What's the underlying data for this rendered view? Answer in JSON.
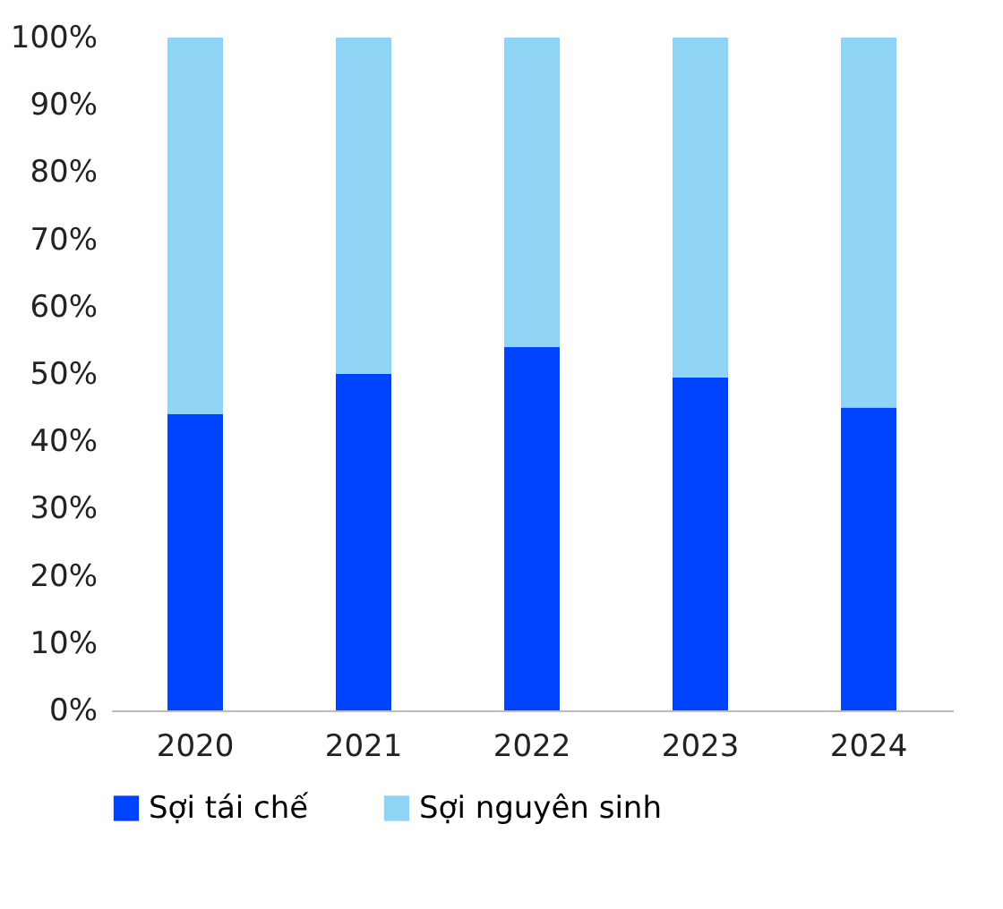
{
  "chart_data": {
    "type": "bar",
    "stacked": true,
    "categories": [
      "2020",
      "2021",
      "2022",
      "2023",
      "2024"
    ],
    "series": [
      {
        "name": "Sợi tái chế",
        "color": "#0044ff",
        "values": [
          44,
          50,
          54,
          49.5,
          45
        ]
      },
      {
        "name": "Sợi nguyên sinh",
        "color": "#8fd4f5",
        "values": [
          56,
          50,
          46,
          50.5,
          55
        ]
      }
    ],
    "ylim": [
      0,
      100
    ],
    "yticks": [
      {
        "value": 0,
        "label": "0%"
      },
      {
        "value": 10,
        "label": "10%"
      },
      {
        "value": 20,
        "label": "20%"
      },
      {
        "value": 30,
        "label": "30%"
      },
      {
        "value": 40,
        "label": "40%"
      },
      {
        "value": 50,
        "label": "50%"
      },
      {
        "value": 60,
        "label": "60%"
      },
      {
        "value": 70,
        "label": "70%"
      },
      {
        "value": 80,
        "label": "80%"
      },
      {
        "value": 90,
        "label": "90%"
      },
      {
        "value": 100,
        "label": "100%"
      }
    ],
    "grid": false,
    "legend": "bottom"
  }
}
